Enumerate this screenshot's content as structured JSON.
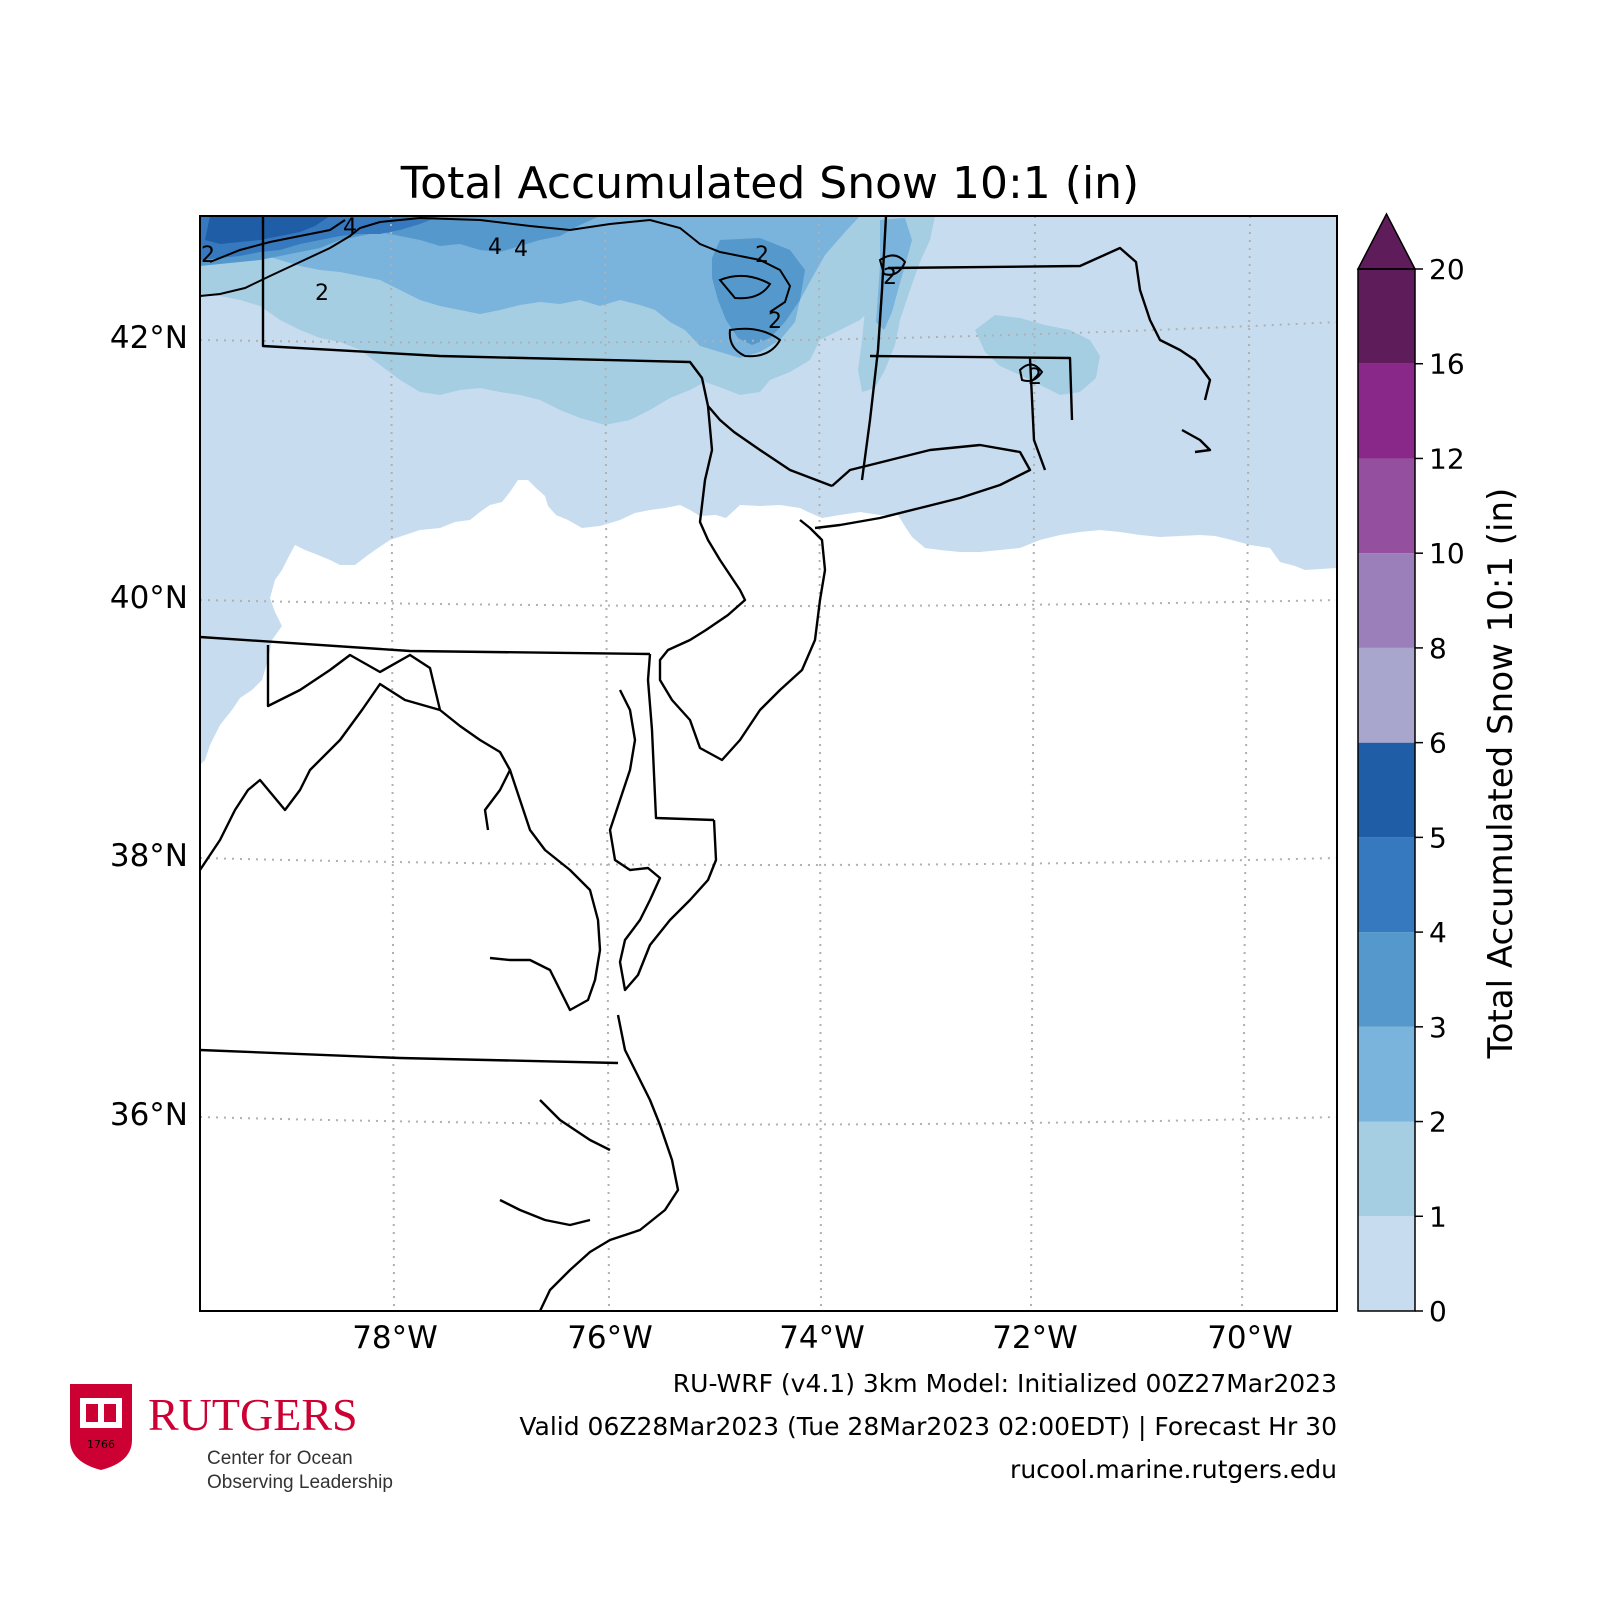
{
  "title": "Total Accumulated Snow 10:1 (in)",
  "colorbar": {
    "label": "Total Accumulated Snow 10:1 (in)",
    "levels": [
      0,
      1,
      2,
      3,
      4,
      5,
      6,
      8,
      10,
      12,
      16,
      20
    ],
    "tick_labels": [
      "0",
      "1",
      "2",
      "3",
      "4",
      "5",
      "6",
      "8",
      "10",
      "12",
      "16",
      "20"
    ],
    "colors": [
      "#c8dcef",
      "#a6cee3",
      "#7ab3dc",
      "#5599cc",
      "#3679bf",
      "#1f5ea6",
      "#a9a6ce",
      "#9a7fba",
      "#94509e",
      "#8a2889",
      "#5e1c5a"
    ],
    "extend": "max"
  },
  "axes": {
    "lon_labels": [
      "78°W",
      "76°W",
      "74°W",
      "72°W",
      "70°W"
    ],
    "lat_labels": [
      "42°N",
      "40°N",
      "38°N",
      "36°N"
    ],
    "gridlines": "dotted"
  },
  "contour_labels": [
    "4",
    "2",
    "4",
    "4",
    "2",
    "2",
    "2",
    "2",
    "2"
  ],
  "footer": {
    "line1": "RU-WRF (v4.1) 3km Model: Initialized 00Z27Mar2023",
    "line2": "Valid 06Z28Mar2023 (Tue 28Mar2023 02:00EDT) | Forecast Hr 30",
    "line3": "rucool.marine.rutgers.edu"
  },
  "logo": {
    "wordmark": "RUTGERS",
    "sub1": "Center for Ocean",
    "sub2": "Observing Leadership",
    "seal_text": "1766",
    "icon": "rutgers-shield-icon"
  },
  "colors": {
    "land_outline": "#000000",
    "grid": "#b0b0b0",
    "brand": "#cc0033"
  }
}
